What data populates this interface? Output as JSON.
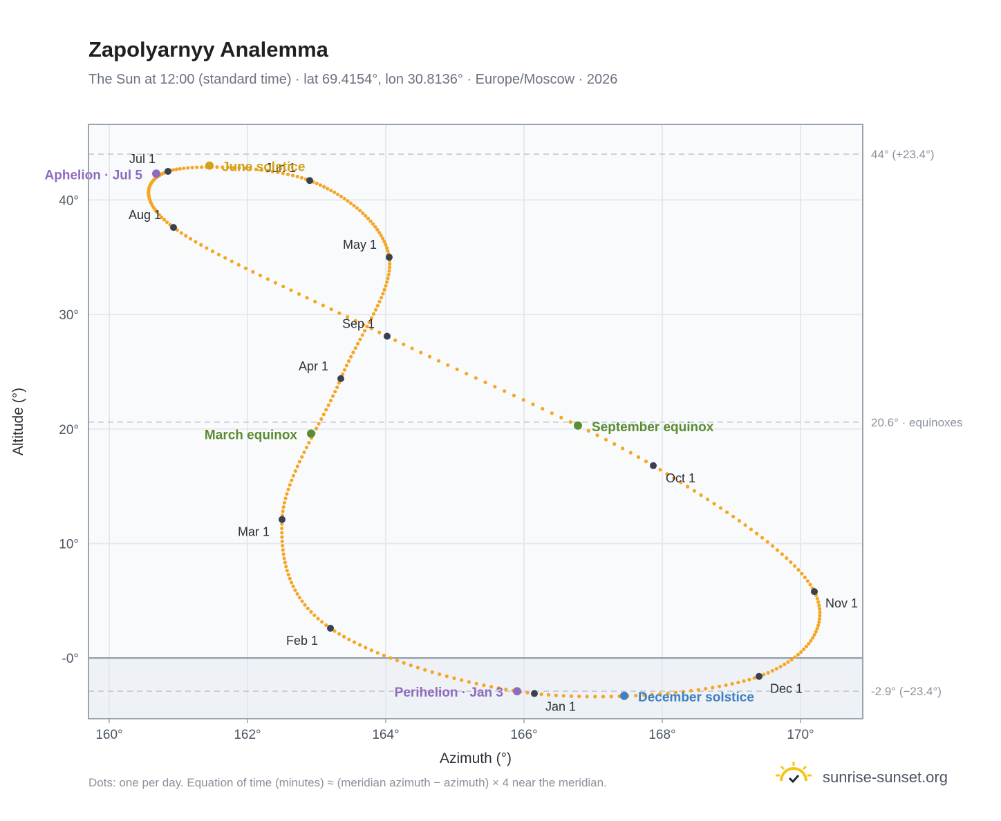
{
  "header": {
    "title": "Zapolyarnyy Analemma",
    "subtitle": "The Sun at 12:00 (standard time) · lat 69.4154°, lon 30.8136° · Europe/Moscow · 2026"
  },
  "footer": {
    "note": "Dots: one per day. Equation of time (minutes) ≈ (meridian azimuth − azimuth) × 4 near the meridian.",
    "brand": "sunrise-sunset.org",
    "brand_icon": "sun-logo-icon"
  },
  "chart_data": {
    "type": "scatter",
    "xlabel": "Azimuth (°)",
    "ylabel": "Altitude (°)",
    "xlim": [
      159.7,
      170.9
    ],
    "ylim": [
      -5.3,
      46.6
    ],
    "x_ticks": [
      160,
      162,
      164,
      166,
      168,
      170
    ],
    "x_tick_labels": [
      "160°",
      "162°",
      "164°",
      "166°",
      "168°",
      "170°"
    ],
    "y_ticks": [
      0,
      10,
      20,
      30,
      40
    ],
    "y_tick_labels": [
      "-0°",
      "10°",
      "20°",
      "30°",
      "40°"
    ],
    "grid": true,
    "below_horizon_shaded": true,
    "reference_lines": [
      {
        "y": 44.0,
        "label": "44° (+23.4°)"
      },
      {
        "y": 20.6,
        "label": "20.6° · equinoxes"
      },
      {
        "y": -2.9,
        "label": "-2.9° (−23.4°)"
      }
    ],
    "colors": {
      "path": "#f5a623",
      "month_marker": "#374151",
      "solstice": "#d4a017",
      "equinox": "#5b8c32",
      "december_solstice": "#3d7fc1",
      "apsis": "#8e6bbf",
      "grid": "#e5e9ef",
      "plot_bg": "#f9fafc"
    },
    "month_markers": [
      {
        "label": "Jan 1",
        "x": 166.15,
        "y": -3.1
      },
      {
        "label": "Feb 1",
        "x": 163.2,
        "y": 2.6
      },
      {
        "label": "Mar 1",
        "x": 162.5,
        "y": 12.1
      },
      {
        "label": "Apr 1",
        "x": 163.35,
        "y": 24.4
      },
      {
        "label": "May 1",
        "x": 164.05,
        "y": 35.0
      },
      {
        "label": "Jun 1",
        "x": 162.9,
        "y": 41.7
      },
      {
        "label": "Jul 1",
        "x": 160.85,
        "y": 42.5
      },
      {
        "label": "Aug 1",
        "x": 160.93,
        "y": 37.6
      },
      {
        "label": "Sep 1",
        "x": 164.02,
        "y": 28.1
      },
      {
        "label": "Oct 1",
        "x": 167.87,
        "y": 16.8
      },
      {
        "label": "Nov 1",
        "x": 170.2,
        "y": 5.8
      },
      {
        "label": "Dec 1",
        "x": 169.4,
        "y": -1.6
      }
    ],
    "events": [
      {
        "label": "June solstice",
        "x": 161.45,
        "y": 43.0,
        "kind": "solstice"
      },
      {
        "label": "March equinox",
        "x": 162.92,
        "y": 19.6,
        "kind": "equinox"
      },
      {
        "label": "September equinox",
        "x": 166.78,
        "y": 20.3,
        "kind": "equinox"
      },
      {
        "label": "December solstice",
        "x": 167.45,
        "y": -3.3,
        "kind": "december_solstice"
      },
      {
        "label": "Aphelion · Jul 5",
        "x": 160.68,
        "y": 42.3,
        "kind": "apsis"
      },
      {
        "label": "Perihelion · Jan 3",
        "x": 165.9,
        "y": -2.9,
        "kind": "apsis"
      }
    ]
  }
}
